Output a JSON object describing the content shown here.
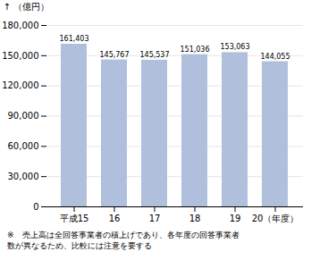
{
  "chart_data": {
    "type": "bar",
    "categories": [
      "平成15",
      "16",
      "17",
      "18",
      "19",
      "20（年度）"
    ],
    "values": [
      161403,
      145767,
      145537,
      151036,
      153063,
      144055
    ],
    "value_labels": [
      "161,403",
      "145,767",
      "145,537",
      "151,036",
      "153,063",
      "144,055"
    ],
    "data_labels": true,
    "color": "#b0bfdc",
    "ylabel": "（億円）",
    "ylim": [
      0,
      180000
    ],
    "yticks": [
      0,
      {
        "value": 30000,
        "label": "30,000"
      },
      {
        "value": 60000,
        "label": "60,000"
      },
      {
        "value": 90000,
        "label": "90,000"
      },
      {
        "value": 120000,
        "label": "120,000"
      },
      {
        "value": 150000,
        "label": "150,000"
      },
      {
        "value": 180000,
        "label": "180,000"
      }
    ],
    "grid": true,
    "footnote": [
      "※　売上高は全回答事業者の積上げであり、各年度の回答事業者",
      "数が異なるため、比較には注意を要する"
    ]
  }
}
